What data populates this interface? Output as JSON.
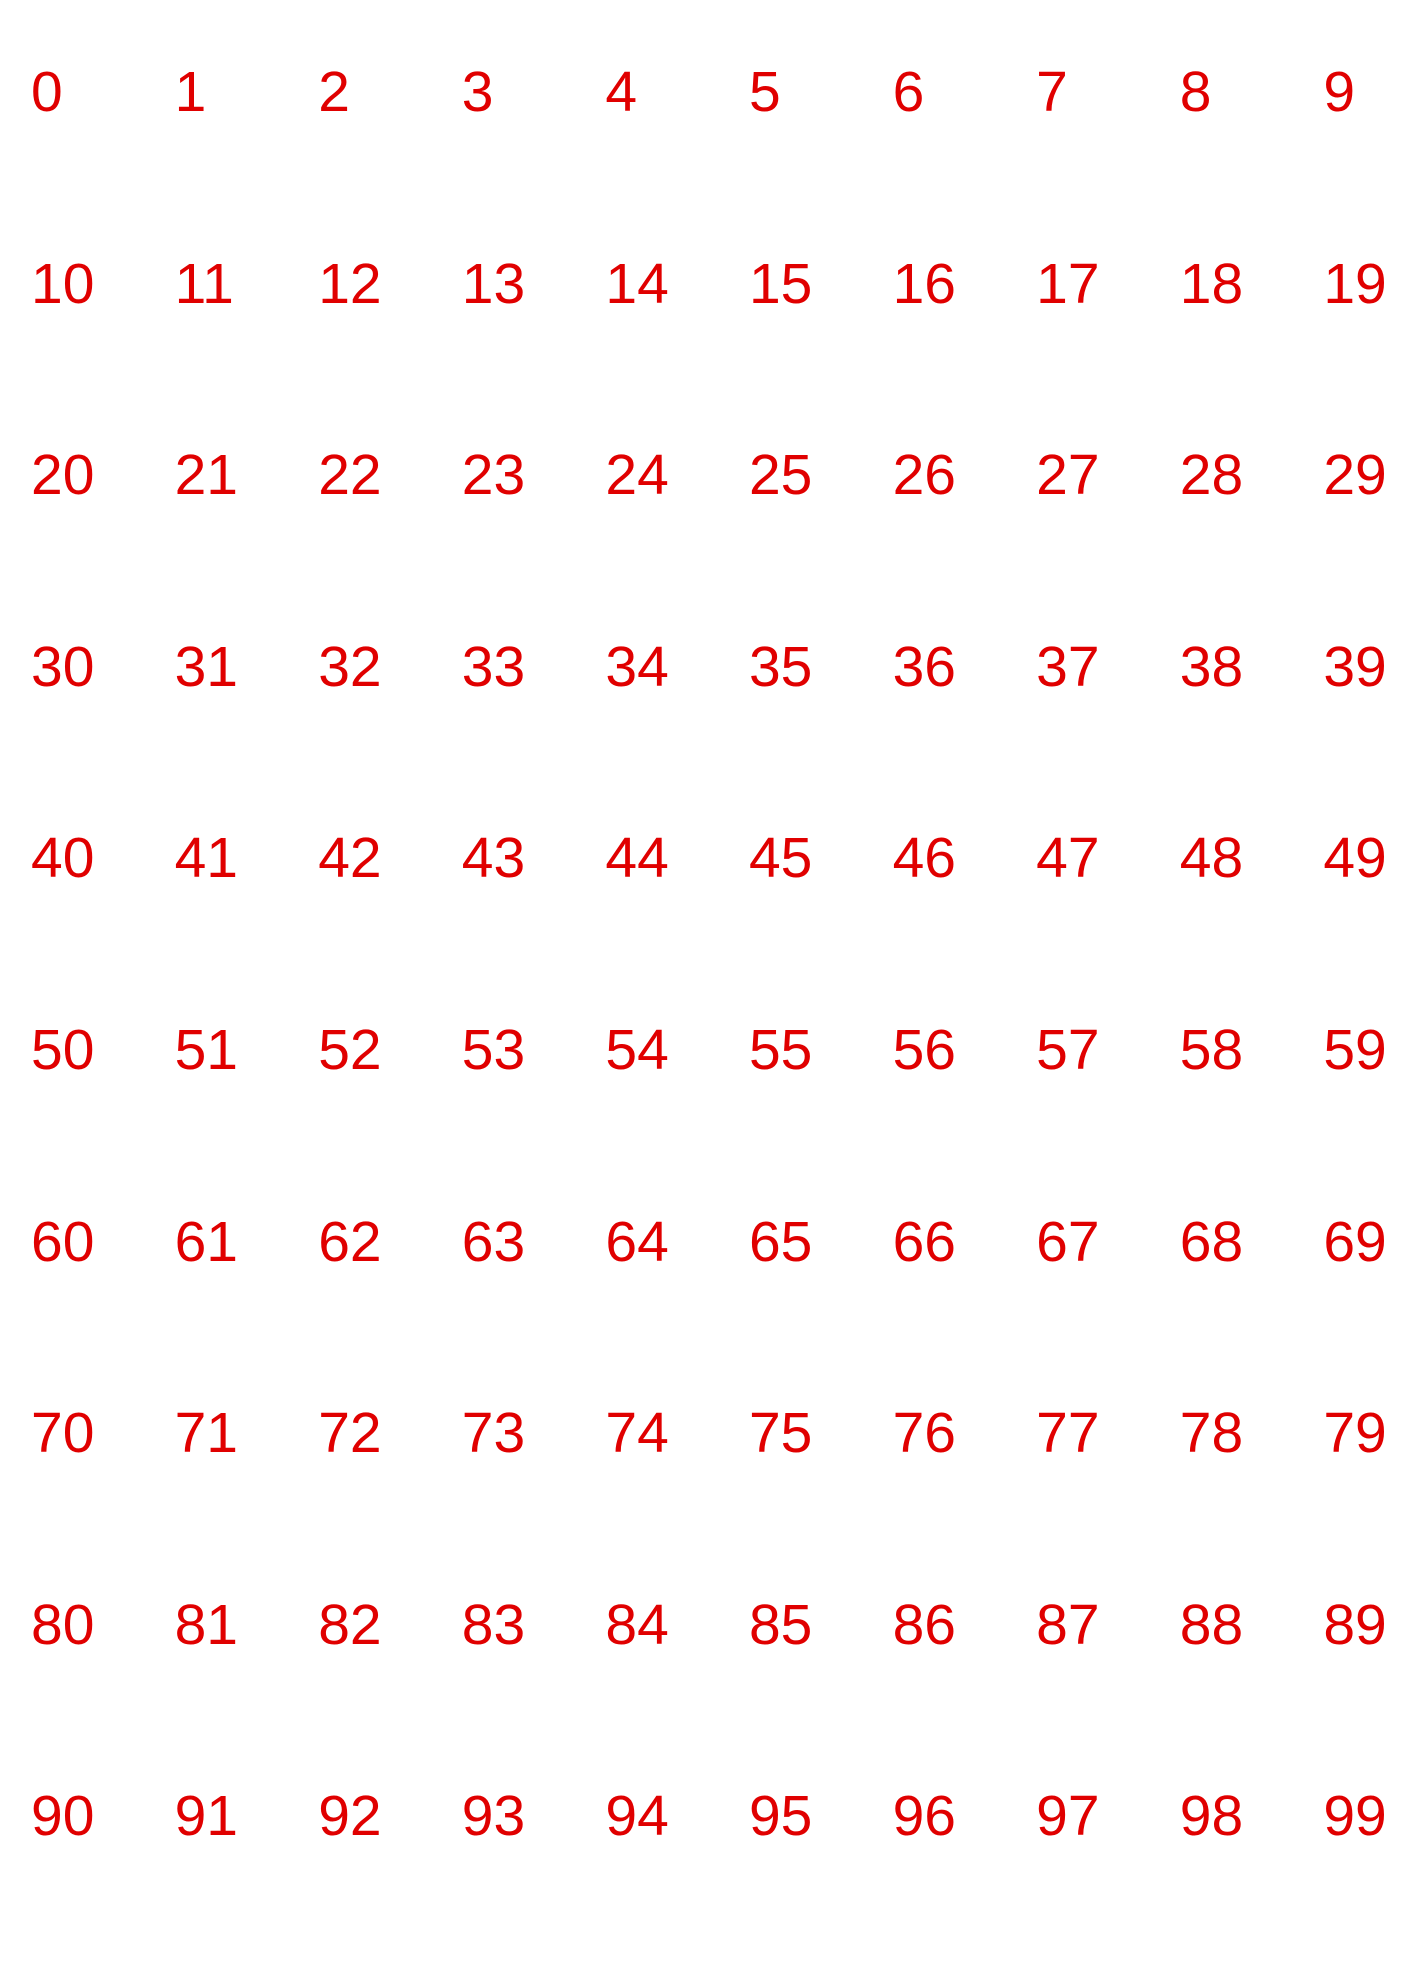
{
  "page": {
    "text_color": "#e00000",
    "background": "#ffffff"
  },
  "numbers": [
    "0",
    "1",
    "2",
    "3",
    "4",
    "5",
    "6",
    "7",
    "8",
    "9",
    "10",
    "11",
    "12",
    "13",
    "14",
    "15",
    "16",
    "17",
    "18",
    "19",
    "20",
    "21",
    "22",
    "23",
    "24",
    "25",
    "26",
    "27",
    "28",
    "29",
    "30",
    "31",
    "32",
    "33",
    "34",
    "35",
    "36",
    "37",
    "38",
    "39",
    "40",
    "41",
    "42",
    "43",
    "44",
    "45",
    "46",
    "47",
    "48",
    "49",
    "50",
    "51",
    "52",
    "53",
    "54",
    "55",
    "56",
    "57",
    "58",
    "59",
    "60",
    "61",
    "62",
    "63",
    "64",
    "65",
    "66",
    "67",
    "68",
    "69",
    "70",
    "71",
    "72",
    "73",
    "74",
    "75",
    "76",
    "77",
    "78",
    "79",
    "80",
    "81",
    "82",
    "83",
    "84",
    "85",
    "86",
    "87",
    "88",
    "89",
    "90",
    "91",
    "92",
    "93",
    "94",
    "95",
    "96",
    "97",
    "98",
    "99"
  ]
}
